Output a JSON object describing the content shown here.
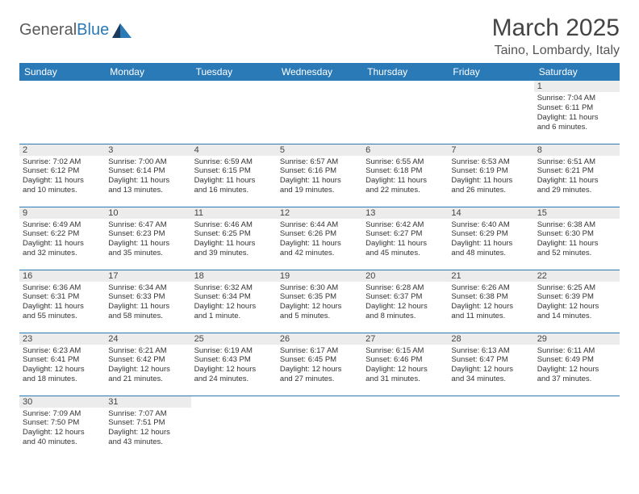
{
  "brand": {
    "word1": "General",
    "word2": "Blue"
  },
  "title": "March 2025",
  "location": "Taino, Lombardy, Italy",
  "colors": {
    "header_bg": "#2a7ab8",
    "header_fg": "#ffffff",
    "daynum_bg": "#ececec",
    "border": "#2a7ab8",
    "text": "#333333",
    "page_bg": "#ffffff"
  },
  "columns": [
    "Sunday",
    "Monday",
    "Tuesday",
    "Wednesday",
    "Thursday",
    "Friday",
    "Saturday"
  ],
  "weeks": [
    [
      {
        "empty": true
      },
      {
        "empty": true
      },
      {
        "empty": true
      },
      {
        "empty": true
      },
      {
        "empty": true
      },
      {
        "empty": true
      },
      {
        "n": "1",
        "sunrise": "Sunrise: 7:04 AM",
        "sunset": "Sunset: 6:11 PM",
        "day1": "Daylight: 11 hours",
        "day2": "and 6 minutes."
      }
    ],
    [
      {
        "n": "2",
        "sunrise": "Sunrise: 7:02 AM",
        "sunset": "Sunset: 6:12 PM",
        "day1": "Daylight: 11 hours",
        "day2": "and 10 minutes."
      },
      {
        "n": "3",
        "sunrise": "Sunrise: 7:00 AM",
        "sunset": "Sunset: 6:14 PM",
        "day1": "Daylight: 11 hours",
        "day2": "and 13 minutes."
      },
      {
        "n": "4",
        "sunrise": "Sunrise: 6:59 AM",
        "sunset": "Sunset: 6:15 PM",
        "day1": "Daylight: 11 hours",
        "day2": "and 16 minutes."
      },
      {
        "n": "5",
        "sunrise": "Sunrise: 6:57 AM",
        "sunset": "Sunset: 6:16 PM",
        "day1": "Daylight: 11 hours",
        "day2": "and 19 minutes."
      },
      {
        "n": "6",
        "sunrise": "Sunrise: 6:55 AM",
        "sunset": "Sunset: 6:18 PM",
        "day1": "Daylight: 11 hours",
        "day2": "and 22 minutes."
      },
      {
        "n": "7",
        "sunrise": "Sunrise: 6:53 AM",
        "sunset": "Sunset: 6:19 PM",
        "day1": "Daylight: 11 hours",
        "day2": "and 26 minutes."
      },
      {
        "n": "8",
        "sunrise": "Sunrise: 6:51 AM",
        "sunset": "Sunset: 6:21 PM",
        "day1": "Daylight: 11 hours",
        "day2": "and 29 minutes."
      }
    ],
    [
      {
        "n": "9",
        "sunrise": "Sunrise: 6:49 AM",
        "sunset": "Sunset: 6:22 PM",
        "day1": "Daylight: 11 hours",
        "day2": "and 32 minutes."
      },
      {
        "n": "10",
        "sunrise": "Sunrise: 6:47 AM",
        "sunset": "Sunset: 6:23 PM",
        "day1": "Daylight: 11 hours",
        "day2": "and 35 minutes."
      },
      {
        "n": "11",
        "sunrise": "Sunrise: 6:46 AM",
        "sunset": "Sunset: 6:25 PM",
        "day1": "Daylight: 11 hours",
        "day2": "and 39 minutes."
      },
      {
        "n": "12",
        "sunrise": "Sunrise: 6:44 AM",
        "sunset": "Sunset: 6:26 PM",
        "day1": "Daylight: 11 hours",
        "day2": "and 42 minutes."
      },
      {
        "n": "13",
        "sunrise": "Sunrise: 6:42 AM",
        "sunset": "Sunset: 6:27 PM",
        "day1": "Daylight: 11 hours",
        "day2": "and 45 minutes."
      },
      {
        "n": "14",
        "sunrise": "Sunrise: 6:40 AM",
        "sunset": "Sunset: 6:29 PM",
        "day1": "Daylight: 11 hours",
        "day2": "and 48 minutes."
      },
      {
        "n": "15",
        "sunrise": "Sunrise: 6:38 AM",
        "sunset": "Sunset: 6:30 PM",
        "day1": "Daylight: 11 hours",
        "day2": "and 52 minutes."
      }
    ],
    [
      {
        "n": "16",
        "sunrise": "Sunrise: 6:36 AM",
        "sunset": "Sunset: 6:31 PM",
        "day1": "Daylight: 11 hours",
        "day2": "and 55 minutes."
      },
      {
        "n": "17",
        "sunrise": "Sunrise: 6:34 AM",
        "sunset": "Sunset: 6:33 PM",
        "day1": "Daylight: 11 hours",
        "day2": "and 58 minutes."
      },
      {
        "n": "18",
        "sunrise": "Sunrise: 6:32 AM",
        "sunset": "Sunset: 6:34 PM",
        "day1": "Daylight: 12 hours",
        "day2": "and 1 minute."
      },
      {
        "n": "19",
        "sunrise": "Sunrise: 6:30 AM",
        "sunset": "Sunset: 6:35 PM",
        "day1": "Daylight: 12 hours",
        "day2": "and 5 minutes."
      },
      {
        "n": "20",
        "sunrise": "Sunrise: 6:28 AM",
        "sunset": "Sunset: 6:37 PM",
        "day1": "Daylight: 12 hours",
        "day2": "and 8 minutes."
      },
      {
        "n": "21",
        "sunrise": "Sunrise: 6:26 AM",
        "sunset": "Sunset: 6:38 PM",
        "day1": "Daylight: 12 hours",
        "day2": "and 11 minutes."
      },
      {
        "n": "22",
        "sunrise": "Sunrise: 6:25 AM",
        "sunset": "Sunset: 6:39 PM",
        "day1": "Daylight: 12 hours",
        "day2": "and 14 minutes."
      }
    ],
    [
      {
        "n": "23",
        "sunrise": "Sunrise: 6:23 AM",
        "sunset": "Sunset: 6:41 PM",
        "day1": "Daylight: 12 hours",
        "day2": "and 18 minutes."
      },
      {
        "n": "24",
        "sunrise": "Sunrise: 6:21 AM",
        "sunset": "Sunset: 6:42 PM",
        "day1": "Daylight: 12 hours",
        "day2": "and 21 minutes."
      },
      {
        "n": "25",
        "sunrise": "Sunrise: 6:19 AM",
        "sunset": "Sunset: 6:43 PM",
        "day1": "Daylight: 12 hours",
        "day2": "and 24 minutes."
      },
      {
        "n": "26",
        "sunrise": "Sunrise: 6:17 AM",
        "sunset": "Sunset: 6:45 PM",
        "day1": "Daylight: 12 hours",
        "day2": "and 27 minutes."
      },
      {
        "n": "27",
        "sunrise": "Sunrise: 6:15 AM",
        "sunset": "Sunset: 6:46 PM",
        "day1": "Daylight: 12 hours",
        "day2": "and 31 minutes."
      },
      {
        "n": "28",
        "sunrise": "Sunrise: 6:13 AM",
        "sunset": "Sunset: 6:47 PM",
        "day1": "Daylight: 12 hours",
        "day2": "and 34 minutes."
      },
      {
        "n": "29",
        "sunrise": "Sunrise: 6:11 AM",
        "sunset": "Sunset: 6:49 PM",
        "day1": "Daylight: 12 hours",
        "day2": "and 37 minutes."
      }
    ],
    [
      {
        "n": "30",
        "sunrise": "Sunrise: 7:09 AM",
        "sunset": "Sunset: 7:50 PM",
        "day1": "Daylight: 12 hours",
        "day2": "and 40 minutes."
      },
      {
        "n": "31",
        "sunrise": "Sunrise: 7:07 AM",
        "sunset": "Sunset: 7:51 PM",
        "day1": "Daylight: 12 hours",
        "day2": "and 43 minutes."
      },
      {
        "empty": true
      },
      {
        "empty": true
      },
      {
        "empty": true
      },
      {
        "empty": true
      },
      {
        "empty": true
      }
    ]
  ]
}
